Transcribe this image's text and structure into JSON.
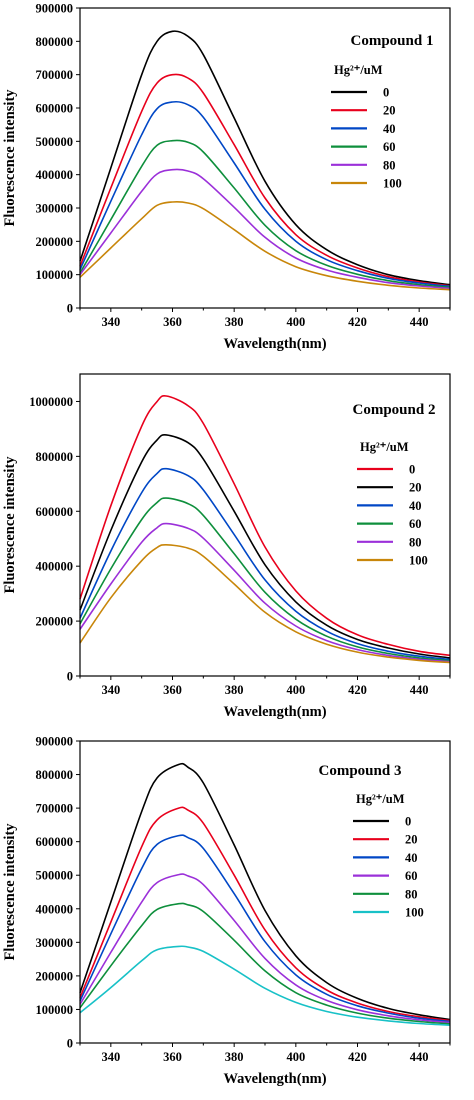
{
  "chart_data": [
    {
      "type": "line",
      "title": "Compound 1",
      "xlabel": "Wavelength(nm)",
      "ylabel": "Fluorescence intensity",
      "xlim": [
        330,
        450
      ],
      "ylim": [
        0,
        900000
      ],
      "xticks": [
        "340",
        "360",
        "380",
        "400",
        "420",
        "440"
      ],
      "yticks": [
        "0",
        "100000",
        "200000",
        "300000",
        "400000",
        "500000",
        "600000",
        "700000",
        "800000",
        "900000"
      ],
      "grid": false,
      "legend_position": "top-right",
      "legend_title": "Hg²⁺/uM",
      "x": [
        330,
        340,
        350,
        355,
        360,
        365,
        370,
        380,
        390,
        400,
        410,
        420,
        430,
        440,
        450
      ],
      "series": [
        {
          "name": "0",
          "color": "#000000",
          "values": [
            140000,
            420000,
            700000,
            800000,
            830000,
            815000,
            760000,
            570000,
            380000,
            250000,
            175000,
            130000,
            100000,
            82000,
            70000
          ]
        },
        {
          "name": "20",
          "color": "#e8001c",
          "values": [
            125000,
            360000,
            590000,
            675000,
            700000,
            690000,
            645000,
            490000,
            330000,
            220000,
            158000,
            120000,
            94000,
            78000,
            67000
          ]
        },
        {
          "name": "40",
          "color": "#0047c6",
          "values": [
            115000,
            320000,
            520000,
            598000,
            618000,
            610000,
            572000,
            435000,
            296000,
            200000,
            145000,
            112000,
            89000,
            75000,
            65000
          ]
        },
        {
          "name": "60",
          "color": "#0e8f3c",
          "values": [
            105000,
            265000,
            425000,
            488000,
            502000,
            497000,
            468000,
            360000,
            248000,
            172000,
            128000,
            101000,
            82000,
            70000,
            62000
          ]
        },
        {
          "name": "80",
          "color": "#9b30d9",
          "values": [
            100000,
            225000,
            350000,
            402000,
            415000,
            411000,
            388000,
            302000,
            212000,
            150000,
            114000,
            92000,
            76000,
            66000,
            59000
          ]
        },
        {
          "name": "100",
          "color": "#c8860a",
          "values": [
            92000,
            180000,
            268000,
            308000,
            318000,
            315000,
            298000,
            235000,
            170000,
            124000,
            97000,
            80000,
            68000,
            60000,
            55000
          ]
        }
      ]
    },
    {
      "type": "line",
      "title": "Compound 2",
      "xlabel": "Wavelength(nm)",
      "ylabel": "Fluorescence intensity",
      "xlim": [
        330,
        450
      ],
      "ylim": [
        0,
        1100000
      ],
      "xticks": [
        "340",
        "360",
        "380",
        "400",
        "420",
        "440"
      ],
      "yticks": [
        "0",
        "200000",
        "400000",
        "600000",
        "800000",
        "1000000"
      ],
      "grid": false,
      "legend_position": "right",
      "legend_title": "Hg²⁺/uM",
      "x": [
        330,
        340,
        350,
        355,
        358,
        365,
        370,
        380,
        390,
        400,
        410,
        420,
        430,
        440,
        450
      ],
      "series": [
        {
          "name": "0",
          "color": "#e8001c",
          "values": [
            280000,
            620000,
            910000,
            1000000,
            1020000,
            985000,
            920000,
            700000,
            470000,
            310000,
            210000,
            150000,
            115000,
            90000,
            75000
          ]
        },
        {
          "name": "20",
          "color": "#000000",
          "values": [
            240000,
            530000,
            780000,
            860000,
            878000,
            850000,
            790000,
            600000,
            405000,
            270000,
            185000,
            133000,
            102000,
            80000,
            66000
          ]
        },
        {
          "name": "40",
          "color": "#0047c6",
          "values": [
            210000,
            455000,
            668000,
            738000,
            755000,
            730000,
            678000,
            515000,
            350000,
            236000,
            163000,
            118000,
            90000,
            72000,
            60000
          ]
        },
        {
          "name": "60",
          "color": "#0e8f3c",
          "values": [
            190000,
            390000,
            570000,
            632000,
            648000,
            628000,
            585000,
            445000,
            305000,
            207000,
            145000,
            106000,
            82000,
            66000,
            56000
          ]
        },
        {
          "name": "80",
          "color": "#9b30d9",
          "values": [
            170000,
            335000,
            487000,
            540000,
            555000,
            538000,
            502000,
            385000,
            265000,
            182000,
            129000,
            96000,
            75000,
            61000,
            52000
          ]
        },
        {
          "name": "100",
          "color": "#c8860a",
          "values": [
            120000,
            285000,
            420000,
            468000,
            478000,
            466000,
            436000,
            335000,
            232000,
            161000,
            116000,
            87000,
            69000,
            57000,
            49000
          ]
        }
      ]
    },
    {
      "type": "line",
      "title": "Compound 3",
      "xlabel": "Wavelength(nm)",
      "ylabel": "Fluorescence intensity",
      "xlim": [
        330,
        450
      ],
      "ylim": [
        0,
        900000
      ],
      "xticks": [
        "340",
        "360",
        "380",
        "400",
        "420",
        "440"
      ],
      "yticks": [
        "0",
        "100000",
        "200000",
        "300000",
        "400000",
        "500000",
        "600000",
        "700000",
        "800000",
        "900000"
      ],
      "grid": false,
      "legend_position": "right",
      "legend_title": "Hg²⁺/uM",
      "x": [
        330,
        340,
        350,
        355,
        362,
        365,
        370,
        380,
        390,
        400,
        410,
        420,
        430,
        440,
        450
      ],
      "series": [
        {
          "name": "0",
          "color": "#000000",
          "values": [
            150000,
            420000,
            690000,
            790000,
            830000,
            822000,
            775000,
            590000,
            395000,
            260000,
            180000,
            133000,
            103000,
            84000,
            70000
          ]
        },
        {
          "name": "20",
          "color": "#e8001c",
          "values": [
            135000,
            360000,
            585000,
            665000,
            700000,
            694000,
            655000,
            500000,
            337000,
            224000,
            158000,
            119000,
            94000,
            78000,
            67000
          ]
        },
        {
          "name": "40",
          "color": "#0047c6",
          "values": [
            125000,
            325000,
            520000,
            592000,
            618000,
            612000,
            580000,
            445000,
            302000,
            203000,
            145000,
            111000,
            89000,
            74000,
            64000
          ]
        },
        {
          "name": "60",
          "color": "#9b30d9",
          "values": [
            115000,
            270000,
            420000,
            478000,
            502000,
            498000,
            472000,
            365000,
            252000,
            173000,
            127000,
            99000,
            81000,
            69000,
            61000
          ]
        },
        {
          "name": "80",
          "color": "#0e8f3c",
          "values": [
            105000,
            230000,
            350000,
            398000,
            415000,
            412000,
            392000,
            306000,
            215000,
            150000,
            113000,
            89000,
            74000,
            64000,
            57000
          ]
        },
        {
          "name": "100",
          "color": "#18c1c7",
          "values": [
            90000,
            165000,
            245000,
            278000,
            288000,
            286000,
            273000,
            220000,
            163000,
            121000,
            94000,
            77000,
            66000,
            58000,
            53000
          ]
        }
      ]
    }
  ]
}
